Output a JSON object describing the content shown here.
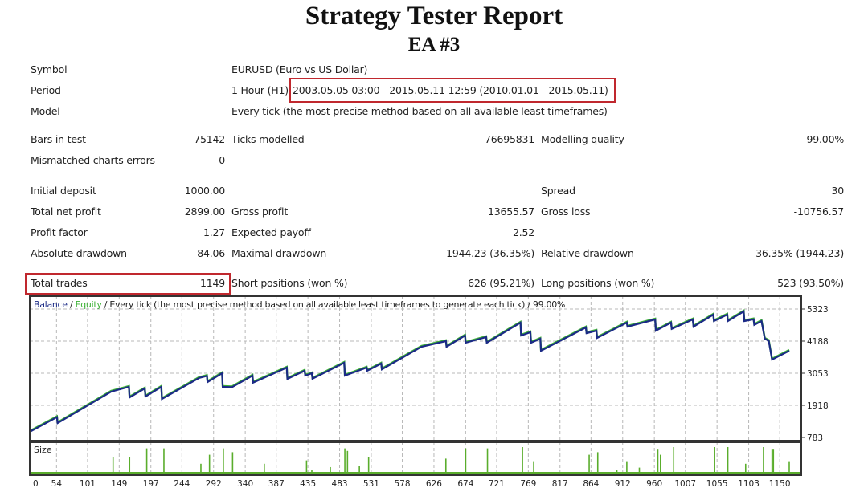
{
  "report": {
    "title": "Strategy Tester Report",
    "subtitle": "EA #3"
  },
  "info": {
    "symbol_label": "Symbol",
    "symbol_value": "EURUSD (Euro vs US Dollar)",
    "period_label": "Period",
    "period_tf": "1 Hour (H1)",
    "period_range": "2003.05.05 03:00 - 2015.05.11 12:59 (2010.01.01 - 2015.05.11)",
    "model_label": "Model",
    "model_value": "Every tick (the most precise method based on all available least timeframes)"
  },
  "stats": {
    "bars_label": "Bars in test",
    "bars_value": "75142",
    "ticks_label": "Ticks modelled",
    "ticks_value": "76695831",
    "quality_label": "Modelling quality",
    "quality_value": "99.00%",
    "mismatch_label": "Mismatched charts errors",
    "mismatch_value": "0",
    "deposit_label": "Initial deposit",
    "deposit_value": "1000.00",
    "spread_label": "Spread",
    "spread_value": "30",
    "netprofit_label": "Total net profit",
    "netprofit_value": "2899.00",
    "grossprofit_label": "Gross profit",
    "grossprofit_value": "13655.57",
    "grossloss_label": "Gross loss",
    "grossloss_value": "-10756.57",
    "pf_label": "Profit factor",
    "pf_value": "1.27",
    "payoff_label": "Expected payoff",
    "payoff_value": "2.52",
    "absdd_label": "Absolute drawdown",
    "absdd_value": "84.06",
    "maxdd_label": "Maximal drawdown",
    "maxdd_value": "1944.23 (36.35%)",
    "reldd_label": "Relative drawdown",
    "reldd_value": "36.35% (1944.23)",
    "trades_label": "Total trades",
    "trades_value": "1149",
    "short_label": "Short positions (won %)",
    "short_value": "626 (95.21%)",
    "long_label": "Long positions (won %)",
    "long_value": "523 (93.50%)"
  },
  "colors": {
    "highlight_box": "#c0282e",
    "balance": "#1b2a86",
    "equity": "#3cb035",
    "size": "#5aad2c",
    "frame": "#333333",
    "grid": "#b8b8b8"
  },
  "chart_data": {
    "type": "line",
    "legend_balance": "Balance",
    "legend_sep": " / ",
    "legend_equity": "Equity",
    "legend_rest": " / Every tick (the most precise method based on all available least timeframes to generate each tick) / 99.00%",
    "size_label": "Size",
    "y_ticks": [
      5323,
      4188,
      3053,
      1918,
      783
    ],
    "ylim": [
      783,
      5323
    ],
    "x_ticks": [
      0,
      54,
      101,
      149,
      197,
      244,
      292,
      340,
      387,
      435,
      483,
      531,
      578,
      626,
      674,
      721,
      769,
      817,
      864,
      912,
      960,
      1007,
      1055,
      1103,
      1150
    ],
    "grid": true,
    "balance": [
      [
        0,
        1000
      ],
      [
        40,
        1500
      ],
      [
        41,
        1290
      ],
      [
        122,
        2400
      ],
      [
        149,
        2570
      ],
      [
        150,
        2200
      ],
      [
        173,
        2514
      ],
      [
        174,
        2230
      ],
      [
        198,
        2570
      ],
      [
        199,
        2145
      ],
      [
        255,
        2883
      ],
      [
        267,
        2960
      ],
      [
        268,
        2740
      ],
      [
        290,
        3053
      ],
      [
        291,
        2570
      ],
      [
        305,
        2560
      ],
      [
        336,
        2968
      ],
      [
        337,
        2720
      ],
      [
        388,
        3252
      ],
      [
        389,
        2855
      ],
      [
        415,
        3140
      ],
      [
        416,
        2970
      ],
      [
        426,
        3050
      ],
      [
        427,
        2860
      ],
      [
        475,
        3422
      ],
      [
        476,
        2968
      ],
      [
        509,
        3252
      ],
      [
        510,
        3140
      ],
      [
        531,
        3394
      ],
      [
        532,
        3190
      ],
      [
        592,
        3990
      ],
      [
        629,
        4188
      ],
      [
        630,
        3990
      ],
      [
        658,
        4386
      ],
      [
        659,
        4131
      ],
      [
        690,
        4330
      ],
      [
        691,
        4131
      ],
      [
        742,
        4841
      ],
      [
        743,
        4387
      ],
      [
        757,
        4500
      ],
      [
        758,
        4131
      ],
      [
        772,
        4273
      ],
      [
        773,
        3847
      ],
      [
        841,
        4670
      ],
      [
        842,
        4470
      ],
      [
        857,
        4557
      ],
      [
        858,
        4302
      ],
      [
        903,
        4841
      ],
      [
        904,
        4700
      ],
      [
        946,
        4954
      ],
      [
        947,
        4557
      ],
      [
        970,
        4841
      ],
      [
        971,
        4620
      ],
      [
        1003,
        4954
      ],
      [
        1004,
        4700
      ],
      [
        1034,
        5124
      ],
      [
        1035,
        4897
      ],
      [
        1055,
        5124
      ],
      [
        1056,
        4897
      ],
      [
        1080,
        5238
      ],
      [
        1081,
        4897
      ],
      [
        1095,
        4960
      ],
      [
        1096,
        4760
      ],
      [
        1107,
        4897
      ],
      [
        1112,
        4273
      ],
      [
        1118,
        4200
      ],
      [
        1123,
        3535
      ],
      [
        1149,
        3847
      ]
    ],
    "size_relative": [
      [
        125,
        0.6
      ],
      [
        150,
        0.6
      ],
      [
        176,
        0.95
      ],
      [
        202,
        0.95
      ],
      [
        258,
        0.35
      ],
      [
        271,
        0.7
      ],
      [
        292,
        0.95
      ],
      [
        306,
        0.8
      ],
      [
        354,
        0.35
      ],
      [
        418,
        0.48
      ],
      [
        426,
        0.12
      ],
      [
        454,
        0.22
      ],
      [
        476,
        0.95
      ],
      [
        480,
        0.85
      ],
      [
        498,
        0.25
      ],
      [
        512,
        0.6
      ],
      [
        629,
        0.55
      ],
      [
        659,
        0.95
      ],
      [
        692,
        0.95
      ],
      [
        745,
        1.0
      ],
      [
        762,
        0.45
      ],
      [
        846,
        0.7
      ],
      [
        859,
        0.8
      ],
      [
        888,
        0.1
      ],
      [
        903,
        0.45
      ],
      [
        922,
        0.2
      ],
      [
        950,
        0.9
      ],
      [
        954,
        0.7
      ],
      [
        974,
        1.0
      ],
      [
        1036,
        1.0
      ],
      [
        1056,
        1.0
      ],
      [
        1083,
        0.35
      ],
      [
        1110,
        1.0
      ],
      [
        1123,
        0.9
      ],
      [
        1125,
        0.9
      ],
      [
        1149,
        0.45
      ]
    ]
  }
}
